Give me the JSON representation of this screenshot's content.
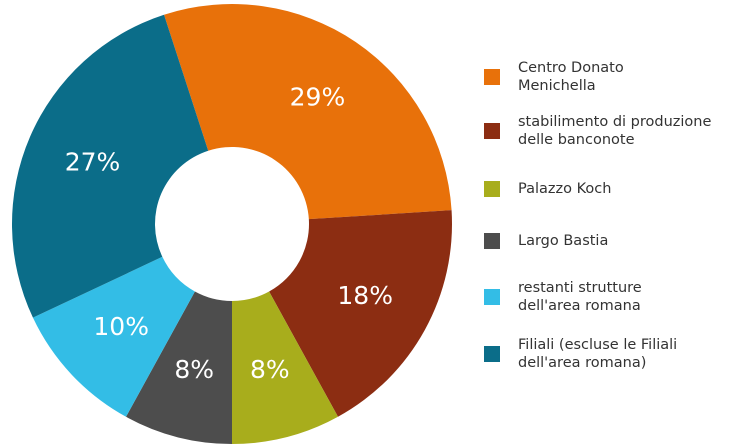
{
  "chart_data": {
    "type": "pie",
    "categories": [
      "Centro Donato\nMenichella",
      "stabilimento di produzione\ndelle banconote",
      "Palazzo Koch",
      "Largo Bastia",
      "restanti strutture\ndell'area romana",
      "Filiali (escluse le Filiali\ndell'area romana)"
    ],
    "values": [
      29,
      18,
      8,
      8,
      10,
      27
    ],
    "value_labels": [
      "29%",
      "18%",
      "8%",
      "8%",
      "10%",
      "27%"
    ],
    "colors": [
      "#e8710a",
      "#8c2d12",
      "#a8ad1c",
      "#4d4d4d",
      "#33bde6",
      "#0b6d89"
    ],
    "legend": "right"
  }
}
